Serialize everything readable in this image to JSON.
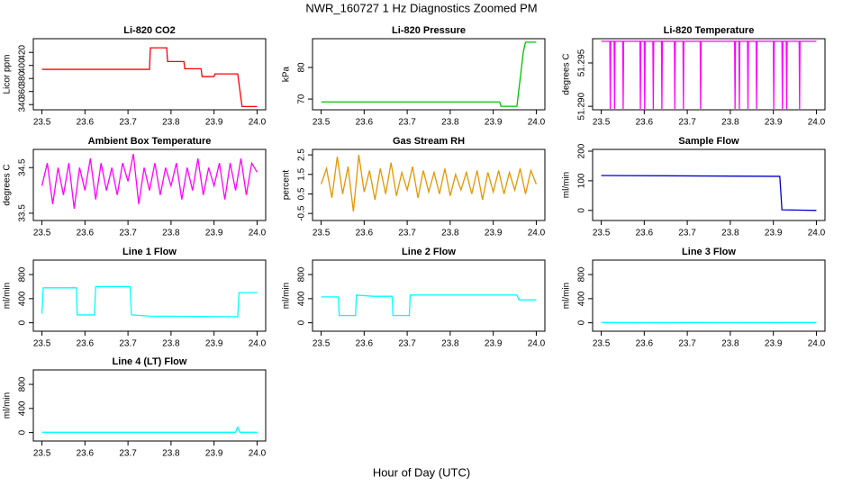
{
  "title": "NWR_160727  1 Hz Diagnostics Zoomed PM",
  "x_label": "Hour of Day (UTC)",
  "chart_data": [
    {
      "type": "line",
      "title": "Li-820 CO2",
      "y_label": "Licor ppm",
      "color": "#ff0000",
      "x": [
        23.5,
        23.75,
        23.752,
        23.79,
        23.792,
        23.83,
        23.832,
        23.87,
        23.872,
        23.9,
        23.902,
        23.955,
        23.965,
        24.0
      ],
      "values": [
        394,
        394,
        427,
        427,
        406,
        406,
        395,
        395,
        383,
        383,
        387,
        387,
        337,
        337
      ],
      "xlim": [
        23.48,
        24.02
      ],
      "xticks": [
        23.5,
        23.6,
        23.7,
        23.8,
        23.9,
        {
          "value": 24,
          "label": "24.0"
        }
      ],
      "ylim": [
        332,
        441
      ],
      "yticks": [
        340,
        360,
        380,
        400,
        420
      ]
    },
    {
      "type": "line",
      "title": "Li-820 Pressure",
      "y_label": "kPa",
      "color": "#00c000",
      "x": [
        23.5,
        23.915,
        23.918,
        23.955,
        23.97,
        23.975,
        24.0
      ],
      "values": [
        69.1,
        69.1,
        67.7,
        67.7,
        85,
        88,
        88
      ],
      "xlim": [
        23.48,
        24.02
      ],
      "xticks": [
        23.5,
        23.6,
        23.7,
        23.8,
        23.9,
        {
          "value": 24,
          "label": "24.0"
        }
      ],
      "ylim": [
        66.6,
        89.1
      ],
      "yticks": [
        70,
        80
      ]
    },
    {
      "type": "line",
      "title": "Li-820 Temperature",
      "y_label": "degrees C",
      "color": "#ff00ff",
      "x": [
        23.5,
        23.52,
        23.521,
        23.522,
        23.53,
        23.531,
        23.532,
        23.55,
        23.551,
        23.552,
        23.59,
        23.591,
        23.592,
        23.6,
        23.601,
        23.602,
        23.62,
        23.621,
        23.622,
        23.64,
        23.641,
        23.642,
        23.67,
        23.671,
        23.672,
        23.69,
        23.691,
        23.692,
        23.73,
        23.731,
        23.732,
        23.81,
        23.811,
        23.812,
        23.82,
        23.821,
        23.822,
        23.84,
        23.841,
        23.842,
        23.86,
        23.861,
        23.862,
        23.9,
        23.901,
        23.902,
        23.92,
        23.921,
        23.922,
        23.93,
        23.931,
        23.932,
        23.96,
        23.961,
        23.962,
        24.0
      ],
      "values": [
        51.2975,
        51.2975,
        51.2897,
        51.2975,
        51.2975,
        51.2897,
        51.2975,
        51.2975,
        51.2897,
        51.2975,
        51.2975,
        51.2897,
        51.2975,
        51.2975,
        51.2897,
        51.2975,
        51.2975,
        51.2897,
        51.2975,
        51.2975,
        51.2897,
        51.2975,
        51.2975,
        51.2897,
        51.2975,
        51.2975,
        51.2897,
        51.2975,
        51.2975,
        51.2897,
        51.2975,
        51.2975,
        51.2897,
        51.2975,
        51.2975,
        51.2897,
        51.2975,
        51.2975,
        51.2897,
        51.2975,
        51.2975,
        51.2897,
        51.2975,
        51.2975,
        51.2897,
        51.2975,
        51.2975,
        51.2897,
        51.2975,
        51.2975,
        51.2897,
        51.2975,
        51.2975,
        51.2897,
        51.2975,
        51.2975
      ],
      "xlim": [
        23.48,
        24.02
      ],
      "xticks": [
        23.5,
        23.6,
        23.7,
        23.8,
        23.9,
        {
          "value": 24,
          "label": "24.0"
        }
      ],
      "ylim": [
        51.2896,
        51.2978
      ],
      "yticks": [
        {
          "value": 51.29,
          "label": "51.290"
        },
        51.295
      ]
    },
    {
      "type": "line",
      "title": "Ambient Box Temperature",
      "y_label": "degrees C",
      "color": "#ff00ff",
      "x": [
        23.5,
        23.5125,
        23.525,
        23.5375,
        23.55,
        23.5625,
        23.575,
        23.5875,
        23.6,
        23.6125,
        23.625,
        23.6375,
        23.65,
        23.6625,
        23.675,
        23.6875,
        23.7,
        23.7125,
        23.725,
        23.7375,
        23.75,
        23.7625,
        23.775,
        23.7875,
        23.8,
        23.8125,
        23.825,
        23.8375,
        23.85,
        23.8625,
        23.875,
        23.8875,
        23.9,
        23.9125,
        23.925,
        23.9375,
        23.95,
        23.9625,
        23.975,
        23.9875,
        24.0
      ],
      "values": [
        34.1,
        34.6,
        33.7,
        34.5,
        33.9,
        34.6,
        33.6,
        34.5,
        34.0,
        34.7,
        33.8,
        34.6,
        34.0,
        34.5,
        33.9,
        34.6,
        34.2,
        34.8,
        33.7,
        34.5,
        34.0,
        34.6,
        33.9,
        34.5,
        34.1,
        34.6,
        33.8,
        34.5,
        34.0,
        34.7,
        33.9,
        34.5,
        34.1,
        34.6,
        33.8,
        34.6,
        34.0,
        34.7,
        33.9,
        34.6,
        34.4
      ],
      "xlim": [
        23.48,
        24.02
      ],
      "xticks": [
        23.5,
        23.6,
        23.7,
        23.8,
        23.9,
        {
          "value": 24,
          "label": "24.0"
        }
      ],
      "ylim": [
        33.34,
        34.9
      ],
      "yticks": [
        33.5,
        34.5
      ]
    },
    {
      "type": "line",
      "title": "Gas Stream RH",
      "y_label": "percent",
      "color": "#e69500",
      "x": [
        23.5,
        23.5125,
        23.525,
        23.5375,
        23.55,
        23.5625,
        23.575,
        23.5875,
        23.6,
        23.6125,
        23.625,
        23.6375,
        23.65,
        23.6625,
        23.675,
        23.6875,
        23.7,
        23.7125,
        23.725,
        23.7375,
        23.75,
        23.7625,
        23.775,
        23.7875,
        23.8,
        23.8125,
        23.825,
        23.8375,
        23.85,
        23.8625,
        23.875,
        23.8875,
        23.9,
        23.9125,
        23.925,
        23.9375,
        23.95,
        23.9625,
        23.975,
        23.9875,
        24.0
      ],
      "values": [
        1.0,
        1.8,
        0.3,
        2.4,
        0.5,
        1.9,
        -0.4,
        2.5,
        0.6,
        1.7,
        0.2,
        1.8,
        0.5,
        2.1,
        0.4,
        1.6,
        0.7,
        1.9,
        0.3,
        1.7,
        0.6,
        1.6,
        0.5,
        1.8,
        0.4,
        1.5,
        0.7,
        1.6,
        0.5,
        1.7,
        0.2,
        1.6,
        0.6,
        1.7,
        0.5,
        1.6,
        0.7,
        1.8,
        0.5,
        1.7,
        1.0
      ],
      "xlim": [
        23.48,
        24.02
      ],
      "xticks": [
        23.5,
        23.6,
        23.7,
        23.8,
        23.9,
        {
          "value": 24,
          "label": "24.0"
        }
      ],
      "ylim": [
        -0.86,
        2.78
      ],
      "yticks": [
        -0.5,
        0.5,
        1.5,
        2.5
      ]
    },
    {
      "type": "line",
      "title": "Sample Flow",
      "y_label": "ml/min",
      "color": "#0000cc",
      "x": [
        23.5,
        23.915,
        23.92,
        24.0
      ],
      "values": [
        118,
        115,
        2,
        0
      ],
      "xlim": [
        23.48,
        24.02
      ],
      "xticks": [
        23.5,
        23.6,
        23.7,
        23.8,
        23.9,
        {
          "value": 24,
          "label": "24.0"
        }
      ],
      "ylim": [
        -34,
        206
      ],
      "yticks": [
        0,
        100,
        200
      ]
    },
    {
      "type": "line",
      "title": "Line 1 Flow",
      "y_label": "ml/min",
      "color": "#00ffff",
      "x": [
        23.5,
        23.503,
        23.58,
        23.582,
        23.622,
        23.625,
        23.705,
        23.708,
        23.75,
        23.955,
        23.958,
        24.0
      ],
      "values": [
        150,
        580,
        580,
        130,
        130,
        600,
        600,
        130,
        110,
        100,
        500,
        500
      ],
      "xlim": [
        23.48,
        24.02
      ],
      "xticks": [
        23.5,
        23.6,
        23.7,
        23.8,
        23.9,
        {
          "value": 24,
          "label": "24.0"
        }
      ],
      "ylim": [
        -140,
        1040
      ],
      "yticks": [
        0,
        400,
        800
      ]
    },
    {
      "type": "line",
      "title": "Line 2 Flow",
      "y_label": "ml/min",
      "color": "#00ffff",
      "x": [
        23.5,
        23.54,
        23.542,
        23.58,
        23.582,
        23.62,
        23.665,
        23.667,
        23.705,
        23.707,
        23.955,
        23.96,
        24.0
      ],
      "values": [
        430,
        430,
        120,
        120,
        460,
        440,
        440,
        120,
        120,
        460,
        460,
        380,
        380
      ],
      "xlim": [
        23.48,
        24.02
      ],
      "xticks": [
        23.5,
        23.6,
        23.7,
        23.8,
        23.9,
        {
          "value": 24,
          "label": "24.0"
        }
      ],
      "ylim": [
        -140,
        1040
      ],
      "yticks": [
        0,
        400,
        800
      ]
    },
    {
      "type": "line",
      "title": "Line 3 Flow",
      "y_label": "ml/min",
      "color": "#00ffff",
      "x": [
        23.5,
        23.6,
        23.7,
        23.8,
        23.9,
        24.0
      ],
      "values": [
        5,
        3,
        5,
        4,
        5,
        5
      ],
      "xlim": [
        23.48,
        24.02
      ],
      "xticks": [
        23.5,
        23.6,
        23.7,
        23.8,
        23.9,
        {
          "value": 24,
          "label": "24.0"
        }
      ],
      "ylim": [
        -140,
        1040
      ],
      "yticks": [
        0,
        400,
        800
      ]
    },
    {
      "type": "line",
      "title": "Line 4 (LT) Flow",
      "y_label": "ml/min",
      "color": "#00ffff",
      "x": [
        23.5,
        23.95,
        23.955,
        23.96,
        24.0
      ],
      "values": [
        5,
        5,
        90,
        5,
        5
      ],
      "xlim": [
        23.48,
        24.02
      ],
      "xticks": [
        23.5,
        23.6,
        23.7,
        23.8,
        23.9,
        {
          "value": 24,
          "label": "24.0"
        }
      ],
      "ylim": [
        -140,
        1040
      ],
      "yticks": [
        0,
        400,
        800
      ]
    }
  ]
}
